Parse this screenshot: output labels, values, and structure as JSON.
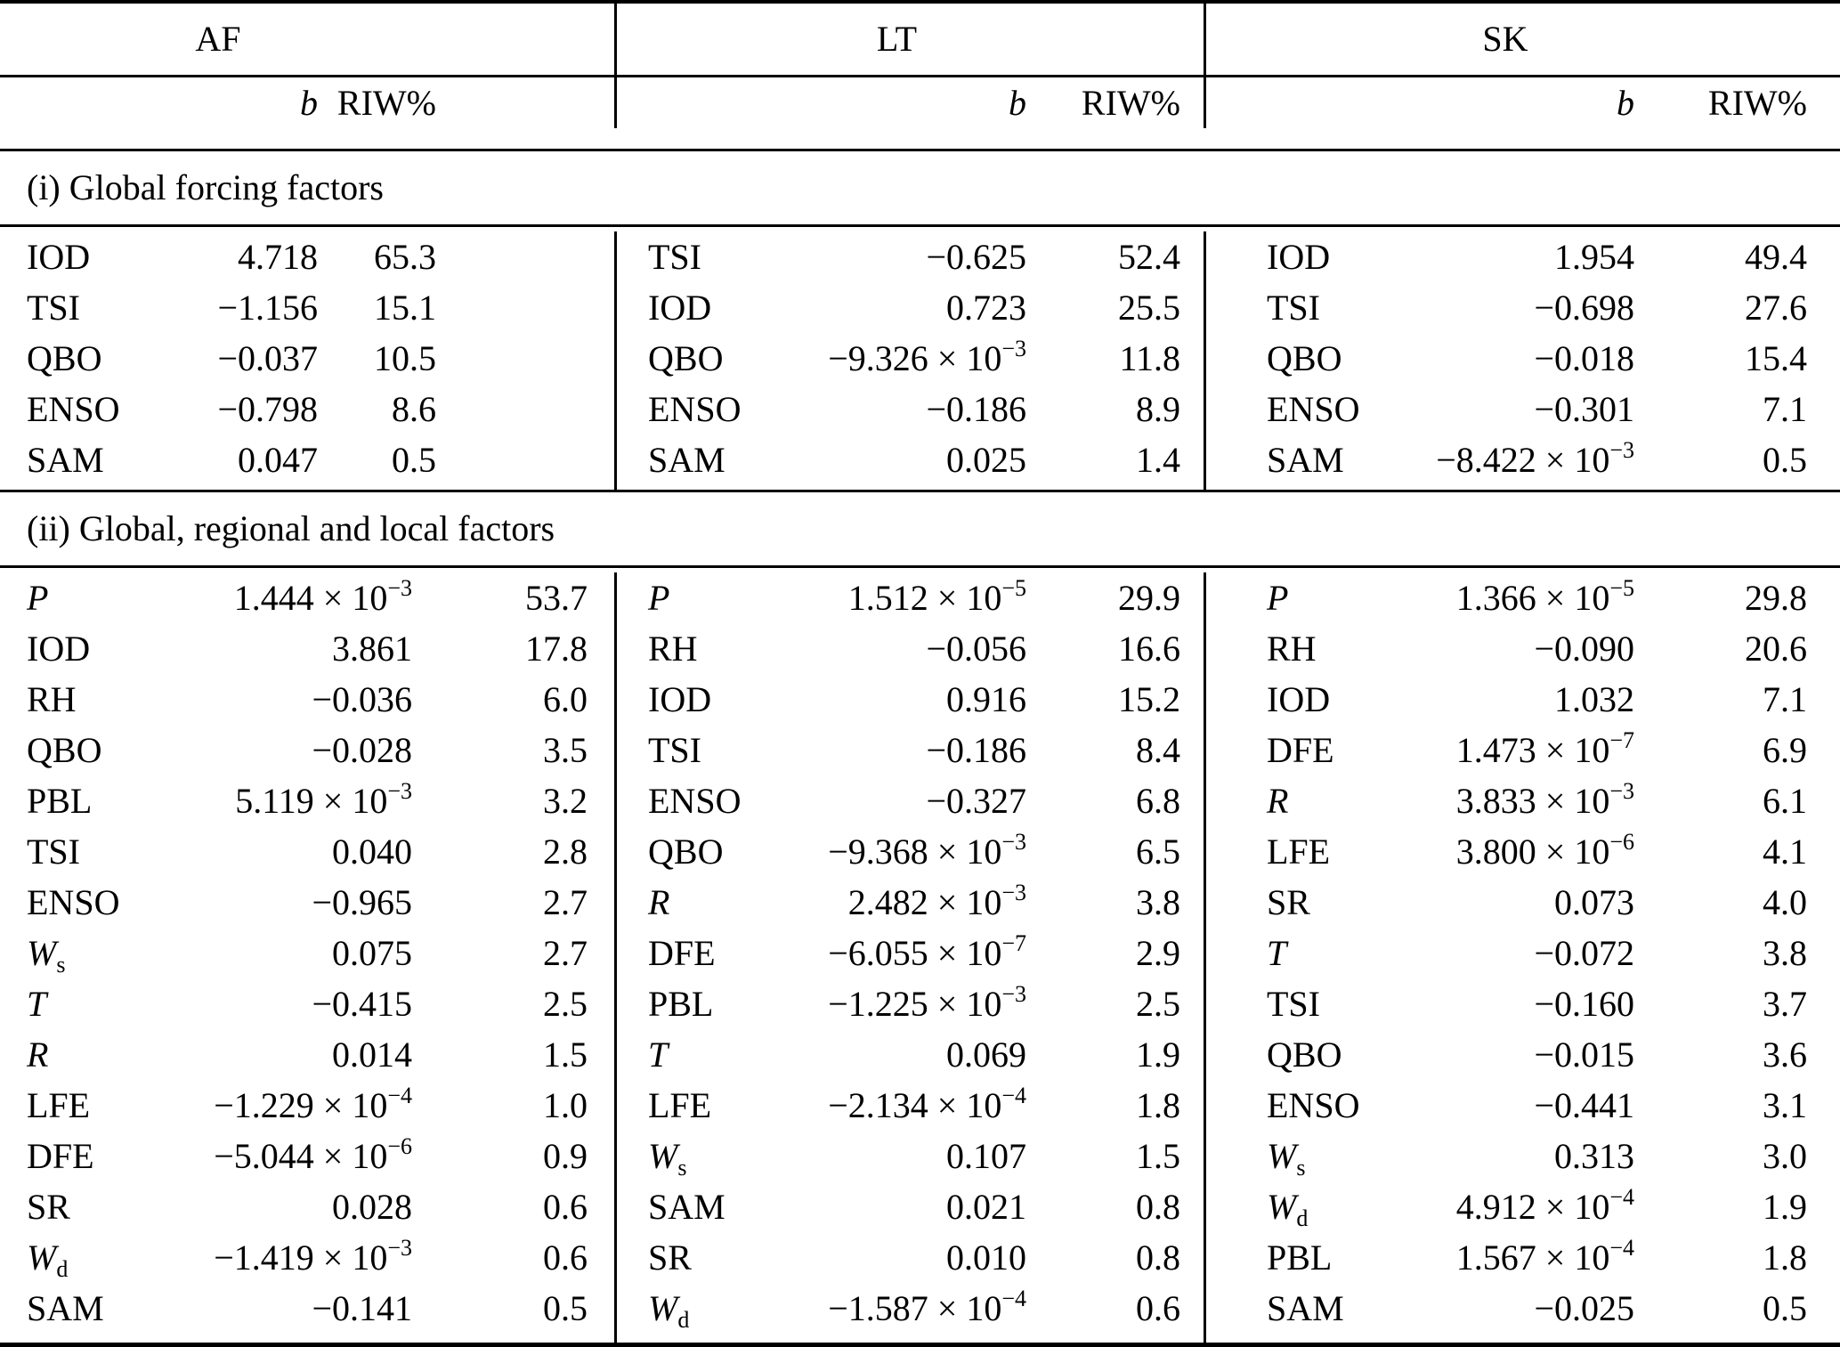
{
  "table": {
    "group_headers": [
      "AF",
      "LT",
      "SK"
    ],
    "column_headers": {
      "b": "b",
      "riw": "RIW%"
    },
    "notation": {
      "times_ten": " × 10"
    },
    "sections": [
      {
        "title": "(i) Global forcing factors",
        "columns": [
          {
            "group": "AF",
            "rows": [
              {
                "factor": "IOD",
                "b": "4.718",
                "riw": "65.3"
              },
              {
                "factor": "TSI",
                "b": "−1.156",
                "riw": "15.1"
              },
              {
                "factor": "QBO",
                "b": "−0.037",
                "riw": "10.5"
              },
              {
                "factor": "ENSO",
                "b": "−0.798",
                "riw": "8.6"
              },
              {
                "factor": "SAM",
                "b": "0.047",
                "riw": "0.5"
              }
            ]
          },
          {
            "group": "LT",
            "rows": [
              {
                "factor": "TSI",
                "b": "−0.625",
                "riw": "52.4"
              },
              {
                "factor": "IOD",
                "b": "0.723",
                "riw": "25.5"
              },
              {
                "factor": "QBO",
                "b": "−9.326",
                "exp": "−3",
                "riw": "11.8"
              },
              {
                "factor": "ENSO",
                "b": "−0.186",
                "riw": "8.9"
              },
              {
                "factor": "SAM",
                "b": "0.025",
                "riw": "1.4"
              }
            ]
          },
          {
            "group": "SK",
            "rows": [
              {
                "factor": "IOD",
                "b": "1.954",
                "riw": "49.4"
              },
              {
                "factor": "TSI",
                "b": "−0.698",
                "riw": "27.6"
              },
              {
                "factor": "QBO",
                "b": "−0.018",
                "riw": "15.4"
              },
              {
                "factor": "ENSO",
                "b": "−0.301",
                "riw": "7.1"
              },
              {
                "factor": "SAM",
                "b": "−8.422",
                "exp": "−3",
                "riw": "0.5"
              }
            ]
          }
        ]
      },
      {
        "title": "(ii) Global, regional and local factors",
        "columns": [
          {
            "group": "AF",
            "rows": [
              {
                "factor": "P",
                "italic": true,
                "b": "1.444",
                "exp": "−3",
                "riw": "53.7"
              },
              {
                "factor": "IOD",
                "b": "3.861",
                "riw": "17.8"
              },
              {
                "factor": "RH",
                "b": "−0.036",
                "riw": "6.0"
              },
              {
                "factor": "QBO",
                "b": "−0.028",
                "riw": "3.5"
              },
              {
                "factor": "PBL",
                "b": "5.119",
                "exp": "−3",
                "riw": "3.2"
              },
              {
                "factor": "TSI",
                "b": "0.040",
                "riw": "2.8"
              },
              {
                "factor": "ENSO",
                "b": "−0.965",
                "riw": "2.7"
              },
              {
                "factor": "W",
                "sub": "s",
                "italic": true,
                "b": "0.075",
                "riw": "2.7"
              },
              {
                "factor": "T",
                "italic": true,
                "b": "−0.415",
                "riw": "2.5"
              },
              {
                "factor": "R",
                "italic": true,
                "b": "0.014",
                "riw": "1.5"
              },
              {
                "factor": "LFE",
                "b": "−1.229",
                "exp": "−4",
                "riw": "1.0"
              },
              {
                "factor": "DFE",
                "b": "−5.044",
                "exp": "−6",
                "riw": "0.9"
              },
              {
                "factor": "SR",
                "b": "0.028",
                "riw": "0.6"
              },
              {
                "factor": "W",
                "sub": "d",
                "italic": true,
                "b": "−1.419",
                "exp": "−3",
                "riw": "0.6"
              },
              {
                "factor": "SAM",
                "b": "−0.141",
                "riw": "0.5"
              }
            ]
          },
          {
            "group": "LT",
            "rows": [
              {
                "factor": "P",
                "italic": true,
                "b": "1.512",
                "exp": "−5",
                "riw": "29.9"
              },
              {
                "factor": "RH",
                "b": "−0.056",
                "riw": "16.6"
              },
              {
                "factor": "IOD",
                "b": "0.916",
                "riw": "15.2"
              },
              {
                "factor": "TSI",
                "b": "−0.186",
                "riw": "8.4"
              },
              {
                "factor": "ENSO",
                "b": "−0.327",
                "riw": "6.8"
              },
              {
                "factor": "QBO",
                "b": "−9.368",
                "exp": "−3",
                "riw": "6.5"
              },
              {
                "factor": "R",
                "italic": true,
                "b": "2.482",
                "exp": "−3",
                "riw": "3.8"
              },
              {
                "factor": "DFE",
                "b": "−6.055",
                "exp": "−7",
                "riw": "2.9"
              },
              {
                "factor": "PBL",
                "b": "−1.225",
                "exp": "−3",
                "riw": "2.5"
              },
              {
                "factor": "T",
                "italic": true,
                "b": "0.069",
                "riw": "1.9"
              },
              {
                "factor": "LFE",
                "b": "−2.134",
                "exp": "−4",
                "riw": "1.8"
              },
              {
                "factor": "W",
                "sub": "s",
                "italic": true,
                "b": "0.107",
                "riw": "1.5"
              },
              {
                "factor": "SAM",
                "b": "0.021",
                "riw": "0.8"
              },
              {
                "factor": "SR",
                "b": "0.010",
                "riw": "0.8"
              },
              {
                "factor": "W",
                "sub": "d",
                "italic": true,
                "b": "−1.587",
                "exp": "−4",
                "riw": "0.6"
              }
            ]
          },
          {
            "group": "SK",
            "rows": [
              {
                "factor": "P",
                "italic": true,
                "b": "1.366",
                "exp": "−5",
                "riw": "29.8"
              },
              {
                "factor": "RH",
                "b": "−0.090",
                "riw": "20.6"
              },
              {
                "factor": "IOD",
                "b": "1.032",
                "riw": "7.1"
              },
              {
                "factor": "DFE",
                "b": "1.473",
                "exp": "−7",
                "riw": "6.9"
              },
              {
                "factor": "R",
                "italic": true,
                "b": "3.833",
                "exp": "−3",
                "riw": "6.1"
              },
              {
                "factor": "LFE",
                "b": "3.800",
                "exp": "−6",
                "riw": "4.1"
              },
              {
                "factor": "SR",
                "b": "0.073",
                "riw": "4.0"
              },
              {
                "factor": "T",
                "italic": true,
                "b": "−0.072",
                "riw": "3.8"
              },
              {
                "factor": "TSI",
                "b": "−0.160",
                "riw": "3.7"
              },
              {
                "factor": "QBO",
                "b": "−0.015",
                "riw": "3.6"
              },
              {
                "factor": "ENSO",
                "b": "−0.441",
                "riw": "3.1"
              },
              {
                "factor": "W",
                "sub": "s",
                "italic": true,
                "b": "0.313",
                "riw": "3.0"
              },
              {
                "factor": "W",
                "sub": "d",
                "italic": true,
                "b": "4.912",
                "exp": "−4",
                "riw": "1.9"
              },
              {
                "factor": "PBL",
                "b": "1.567",
                "exp": "−4",
                "riw": "1.8"
              },
              {
                "factor": "SAM",
                "b": "−0.025",
                "riw": "0.5"
              }
            ]
          }
        ]
      }
    ]
  }
}
